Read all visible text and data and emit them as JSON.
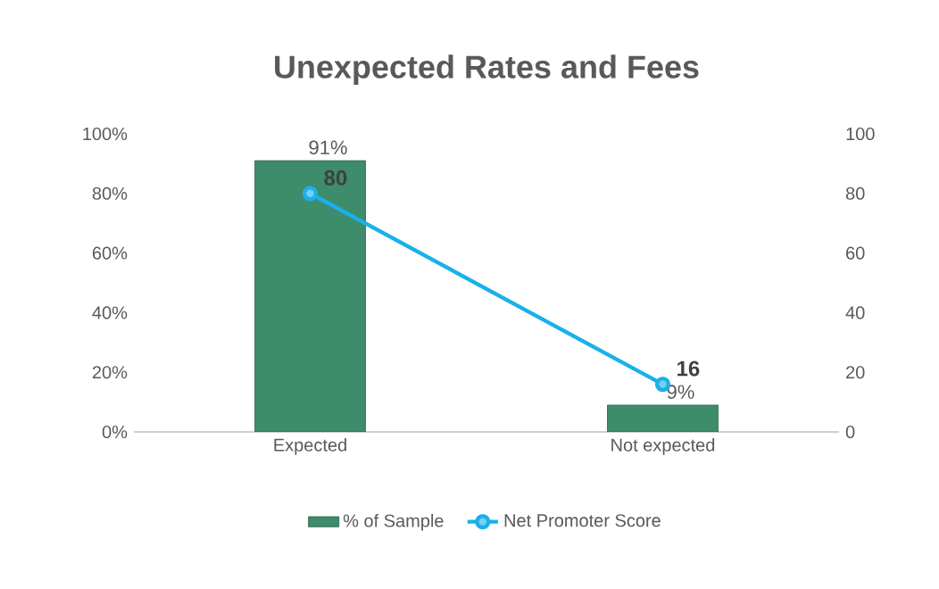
{
  "chart_data": {
    "type": "bar",
    "title": "Unexpected Rates and Fees",
    "categories": [
      "Expected",
      "Not expected"
    ],
    "series": [
      {
        "name": "% of Sample",
        "color": "#3d8c6b",
        "values": [
          91,
          9
        ],
        "value_labels": [
          "91%",
          "9%"
        ]
      },
      {
        "name": "Net Promoter Score",
        "type": "line",
        "axis": "y2",
        "color": "#1ab0ea",
        "values": [
          80,
          16
        ],
        "value_labels": [
          "80",
          "16"
        ],
        "marker": "circle",
        "line_style": "solid"
      }
    ],
    "ylim": [
      0,
      100
    ],
    "yticks": [
      {
        "value": 0,
        "label": "0%"
      },
      {
        "value": 20,
        "label": "20%"
      },
      {
        "value": 40,
        "label": "40%"
      },
      {
        "value": 60,
        "label": "60%"
      },
      {
        "value": 80,
        "label": "80%"
      },
      {
        "value": 100,
        "label": "100%"
      }
    ],
    "y2lim": [
      0,
      100
    ],
    "y2ticks": [
      0,
      20,
      40,
      60,
      80,
      100
    ],
    "legend": "bottom"
  }
}
